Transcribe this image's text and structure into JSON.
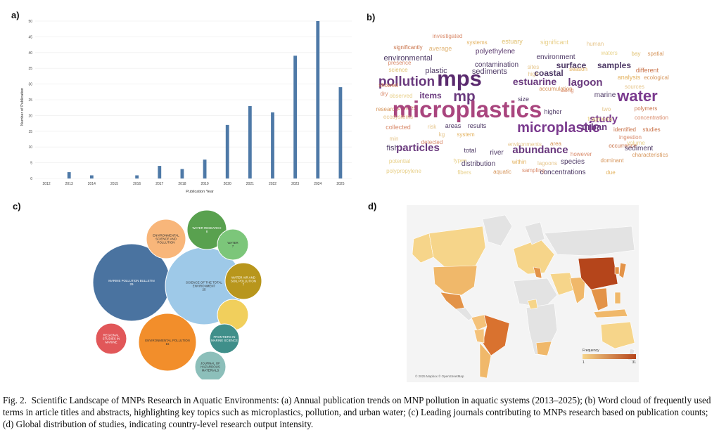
{
  "panel_labels": {
    "a": "a)",
    "b": "b)",
    "c": "c)",
    "d": "d)"
  },
  "chart_data": [
    {
      "type": "bar",
      "panel": "a",
      "title": "",
      "xlabel": "Publication Year",
      "ylabel": "Number of Publication",
      "categories": [
        "2012",
        "2013",
        "2014",
        "2015",
        "2016",
        "2017",
        "2018",
        "2019",
        "2020",
        "2021",
        "2022",
        "2023",
        "2024",
        "2025"
      ],
      "values": [
        0,
        2,
        1,
        0,
        1,
        4,
        3,
        6,
        17,
        23,
        21,
        39,
        50,
        29
      ],
      "yticks": [
        "0",
        "5",
        "10",
        "15",
        "20",
        "25",
        "30",
        "35",
        "40",
        "45",
        "50"
      ],
      "ylim": [
        0,
        50
      ],
      "color": "#4e79a7"
    }
  ],
  "wordcloud": {
    "words": [
      {
        "text": "investigated",
        "color": "#d98a6a",
        "size": 8
      },
      {
        "text": "systems",
        "color": "#e3b25f",
        "size": 8
      },
      {
        "text": "estuary",
        "color": "#e0c070",
        "size": 9
      },
      {
        "text": "significant",
        "color": "#e8d08a",
        "size": 9
      },
      {
        "text": "human",
        "color": "#e6c68c",
        "size": 8
      },
      {
        "text": "significantly",
        "color": "#c9734a",
        "size": 8
      },
      {
        "text": "average",
        "color": "#e2b77a",
        "size": 9
      },
      {
        "text": "polyethylene",
        "color": "#5a3a6e",
        "size": 10
      },
      {
        "text": "waters",
        "color": "#e8d48e",
        "size": 8
      },
      {
        "text": "bay",
        "color": "#e0c070",
        "size": 8
      },
      {
        "text": "spatial",
        "color": "#d6965c",
        "size": 8
      },
      {
        "text": "environmental",
        "color": "#4e3a66",
        "size": 11
      },
      {
        "text": "environment",
        "color": "#4e3a66",
        "size": 10
      },
      {
        "text": "presence",
        "color": "#d98a6a",
        "size": 8
      },
      {
        "text": "contamination",
        "color": "#4e3a66",
        "size": 10
      },
      {
        "text": "surface",
        "color": "#4e3a66",
        "size": 12
      },
      {
        "text": "samples",
        "color": "#4e3a66",
        "size": 12
      },
      {
        "text": "science",
        "color": "#e0c070",
        "size": 8
      },
      {
        "text": "plastic",
        "color": "#4e3a66",
        "size": 11
      },
      {
        "text": "sediments",
        "color": "#4e3a66",
        "size": 11
      },
      {
        "text": "sites",
        "color": "#e6c68c",
        "size": 8
      },
      {
        "text": "high",
        "color": "#e6c68c",
        "size": 8
      },
      {
        "text": "coastal",
        "color": "#4e3a66",
        "size": 12
      },
      {
        "text": "season",
        "color": "#e3b25f",
        "size": 8
      },
      {
        "text": "different",
        "color": "#c9734a",
        "size": 9
      },
      {
        "text": "ecological",
        "color": "#d6965c",
        "size": 8
      },
      {
        "text": "pollution",
        "color": "#6a3a7e",
        "size": 19
      },
      {
        "text": "mps",
        "color": "#5a2a6e",
        "size": 31
      },
      {
        "text": "estuarine",
        "color": "#6a3a7e",
        "size": 14
      },
      {
        "text": "lagoon",
        "color": "#6a3a7e",
        "size": 15
      },
      {
        "text": "analysis",
        "color": "#e3b25f",
        "size": 9
      },
      {
        "text": "sources",
        "color": "#e6c68c",
        "size": 8
      },
      {
        "text": "showed",
        "color": "#c9734a",
        "size": 8
      },
      {
        "text": "dry",
        "color": "#d98a6a",
        "size": 8
      },
      {
        "text": "observed",
        "color": "#e8d08a",
        "size": 8
      },
      {
        "text": "items",
        "color": "#6a3a7e",
        "size": 12
      },
      {
        "text": "mp",
        "color": "#6a3a7e",
        "size": 21
      },
      {
        "text": "accumulation",
        "color": "#d6965c",
        "size": 8
      },
      {
        "text": "using",
        "color": "#d98a6a",
        "size": 8
      },
      {
        "text": "marine",
        "color": "#4e3a66",
        "size": 10
      },
      {
        "text": "water",
        "color": "#7a3a8e",
        "size": 22
      },
      {
        "text": "research",
        "color": "#d6965c",
        "size": 8
      },
      {
        "text": "activities",
        "color": "#c9734a",
        "size": 8
      },
      {
        "text": "higher",
        "color": "#4e3a66",
        "size": 9
      },
      {
        "text": "microplastics",
        "color": "#a9457e",
        "size": 33
      },
      {
        "text": "size",
        "color": "#4e3a66",
        "size": 9
      },
      {
        "text": "polymers",
        "color": "#c9734a",
        "size": 8
      },
      {
        "text": "ecosystems",
        "color": "#e6c68c",
        "size": 8
      },
      {
        "text": "study",
        "color": "#7a3a8e",
        "size": 15
      },
      {
        "text": "two",
        "color": "#e6c68c",
        "size": 8
      },
      {
        "text": "concentration",
        "color": "#d98a6a",
        "size": 8
      },
      {
        "text": "collected",
        "color": "#d98a6a",
        "size": 9
      },
      {
        "text": "risk",
        "color": "#e6c68c",
        "size": 8
      },
      {
        "text": "areas",
        "color": "#4e3a66",
        "size": 9
      },
      {
        "text": "results",
        "color": "#4e3a66",
        "size": 9
      },
      {
        "text": "microplastic",
        "color": "#7a3a8e",
        "size": 20
      },
      {
        "text": "urban",
        "color": "#6a3a7e",
        "size": 13
      },
      {
        "text": "fragments",
        "color": "#e8d08a",
        "size": 8
      },
      {
        "text": "identified",
        "color": "#c9734a",
        "size": 8
      },
      {
        "text": "studies",
        "color": "#c9734a",
        "size": 8
      },
      {
        "text": "min",
        "color": "#e6c68c",
        "size": 8
      },
      {
        "text": "kg",
        "color": "#e6c68c",
        "size": 8
      },
      {
        "text": "system",
        "color": "#e3b25f",
        "size": 8
      },
      {
        "text": "ingestion",
        "color": "#d98a6a",
        "size": 8
      },
      {
        "text": "volume",
        "color": "#e8d08a",
        "size": 8
      },
      {
        "text": "detected",
        "color": "#d98a6a",
        "size": 8
      },
      {
        "text": "fish",
        "color": "#4e3a66",
        "size": 11
      },
      {
        "text": "particles",
        "color": "#6a3a7e",
        "size": 15
      },
      {
        "text": "total",
        "color": "#4e3a66",
        "size": 9
      },
      {
        "text": "environments",
        "color": "#e6c68c",
        "size": 8
      },
      {
        "text": "area",
        "color": "#d6965c",
        "size": 8
      },
      {
        "text": "occurrence",
        "color": "#c9734a",
        "size": 8
      },
      {
        "text": "sediment",
        "color": "#4e3a66",
        "size": 10
      },
      {
        "text": "river",
        "color": "#4e3a66",
        "size": 10
      },
      {
        "text": "abundance",
        "color": "#6a3a7e",
        "size": 15
      },
      {
        "text": "however",
        "color": "#d98a6a",
        "size": 8
      },
      {
        "text": "characteristics",
        "color": "#d6965c",
        "size": 8
      },
      {
        "text": "potential",
        "color": "#e8d08a",
        "size": 8
      },
      {
        "text": "types",
        "color": "#e8d08a",
        "size": 8
      },
      {
        "text": "distribution",
        "color": "#4e3a66",
        "size": 10
      },
      {
        "text": "within",
        "color": "#e3b25f",
        "size": 8
      },
      {
        "text": "lagoons",
        "color": "#e6c68c",
        "size": 8
      },
      {
        "text": "species",
        "color": "#4e3a66",
        "size": 10
      },
      {
        "text": "dominant",
        "color": "#d6965c",
        "size": 8
      },
      {
        "text": "polypropylene",
        "color": "#e8d08a",
        "size": 8
      },
      {
        "text": "fibers",
        "color": "#e8d08a",
        "size": 8
      },
      {
        "text": "aquatic",
        "color": "#d6965c",
        "size": 8
      },
      {
        "text": "sampling",
        "color": "#d98a6a",
        "size": 8
      },
      {
        "text": "concentrations",
        "color": "#4e3a66",
        "size": 10
      },
      {
        "text": "due",
        "color": "#e3b25f",
        "size": 8
      }
    ]
  },
  "bubbles": [
    {
      "name": "MARINE POLLUTION BULLETIN",
      "value": "29",
      "color": "#4a73a0"
    },
    {
      "name": "SCIENCE OF THE TOTAL ENVIRONMENT",
      "value": "25",
      "color": "#9ec9e8"
    },
    {
      "name": "ENVIRONMENTAL POLLUTION",
      "value": "16",
      "color": "#f28e2b"
    },
    {
      "name": "ENVIRONMENTAL SCIENCE AND POLLUTION",
      "value": "",
      "color": "#f8b67a"
    },
    {
      "name": "WATER RESEARCH",
      "value": "8",
      "color": "#59a14f"
    },
    {
      "name": "WATER",
      "value": "7",
      "color": "#7cc67a"
    },
    {
      "name": "WATER AIR AND SOIL POLLUTION",
      "value": "7",
      "color": "#b8961c"
    },
    {
      "name": "",
      "value": "",
      "color": "#f1cf5c"
    },
    {
      "name": "REGIONAL STUDIES IN MARINE",
      "value": "",
      "color": "#e15759"
    },
    {
      "name": "FRONTIERS IN MARINE SCIENCE",
      "value": "",
      "color": "#3f8f8a"
    },
    {
      "name": "JOURNAL OF HAZARDOUS MATERIALS",
      "value": "",
      "color": "#8cbfba"
    }
  ],
  "map": {
    "legend_title": "Frequency",
    "legend_min": "1",
    "legend_max": "31",
    "credit": "© 2025 Mapbox © OpenStreetMap",
    "color_low": "#f6d58a",
    "color_high": "#b5451b"
  },
  "caption": {
    "lead": "Fig. 2.",
    "text": "Scientific Landscape of MNPs Research in Aquatic Environments: (a) Annual publication trends on MNP pollution in aquatic systems (2013–2025); (b) Word cloud of frequently used terms in article titles and abstracts, highlighting key topics such as microplastics, pollution, and urban water; (c) Leading journals contributing to MNPs research based on publication counts; (d) Global distribution of studies, indicating country-level research output intensity."
  }
}
